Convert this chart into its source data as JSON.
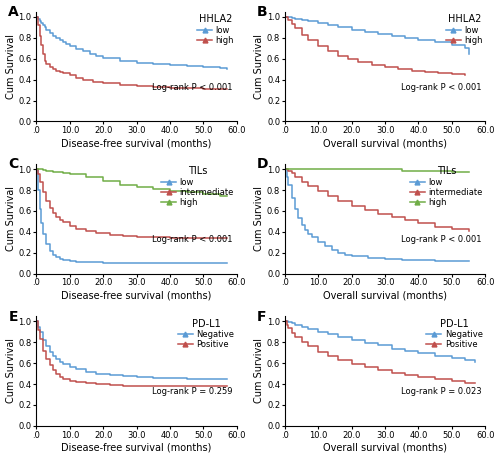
{
  "xlim": [
    0,
    60
  ],
  "ylim": [
    0,
    1.05
  ],
  "xticks": [
    0,
    10,
    20,
    30,
    40,
    50,
    60
  ],
  "yticks": [
    0.0,
    0.2,
    0.4,
    0.6,
    0.8,
    1.0
  ],
  "xticklabels": [
    ".0",
    "10.0",
    "20.0",
    "30.0",
    "40.0",
    "50.0",
    "60.0"
  ],
  "yticklabels": [
    "0.0",
    "0.2",
    "0.4",
    "0.6",
    "0.8",
    "1.0"
  ],
  "colors": {
    "blue": "#5b9bd5",
    "red": "#c0504d",
    "green": "#70ad47"
  },
  "A": {
    "title": "HHLA2",
    "legend": [
      "low",
      "high"
    ],
    "pvalue": "Log-rank P < 0.001",
    "xlabel": "Disease-free survival (months)",
    "ylabel": "Cum Survival",
    "curves": {
      "low": {
        "t": [
          0,
          0.5,
          1,
          1.5,
          2,
          2.5,
          3,
          4,
          5,
          6,
          7,
          8,
          9,
          10,
          12,
          14,
          16,
          18,
          20,
          25,
          30,
          35,
          40,
          45,
          50,
          55,
          57
        ],
        "s": [
          1.0,
          0.98,
          0.96,
          0.94,
          0.92,
          0.9,
          0.88,
          0.85,
          0.82,
          0.8,
          0.78,
          0.76,
          0.74,
          0.72,
          0.69,
          0.67,
          0.65,
          0.63,
          0.61,
          0.58,
          0.56,
          0.55,
          0.54,
          0.53,
          0.52,
          0.51,
          0.5
        ]
      },
      "high": {
        "t": [
          0,
          0.5,
          1,
          1.5,
          2,
          2.5,
          3,
          4,
          5,
          6,
          7,
          8,
          10,
          12,
          14,
          17,
          20,
          25,
          30,
          35,
          40,
          45,
          50,
          55,
          57
        ],
        "s": [
          1.0,
          0.92,
          0.82,
          0.73,
          0.65,
          0.58,
          0.55,
          0.52,
          0.5,
          0.48,
          0.47,
          0.46,
          0.44,
          0.42,
          0.4,
          0.38,
          0.37,
          0.35,
          0.34,
          0.33,
          0.32,
          0.32,
          0.31,
          0.31,
          0.31
        ]
      }
    }
  },
  "B": {
    "title": "HHLA2",
    "legend": [
      "low",
      "high"
    ],
    "pvalue": "Log-rank P < 0.001",
    "xlabel": "Overall survival (months)",
    "ylabel": "Cum Survival",
    "curves": {
      "low": {
        "t": [
          0,
          1,
          2,
          3,
          5,
          7,
          10,
          13,
          16,
          20,
          24,
          28,
          32,
          36,
          40,
          45,
          50,
          54,
          55
        ],
        "s": [
          1.0,
          1.0,
          0.99,
          0.98,
          0.97,
          0.96,
          0.94,
          0.92,
          0.9,
          0.88,
          0.86,
          0.84,
          0.82,
          0.8,
          0.78,
          0.76,
          0.73,
          0.7,
          0.65
        ]
      },
      "high": {
        "t": [
          0,
          1,
          2,
          3,
          5,
          7,
          10,
          13,
          16,
          19,
          22,
          26,
          30,
          34,
          38,
          42,
          46,
          50,
          54
        ],
        "s": [
          1.0,
          0.97,
          0.93,
          0.89,
          0.83,
          0.78,
          0.72,
          0.67,
          0.63,
          0.6,
          0.57,
          0.54,
          0.52,
          0.5,
          0.48,
          0.47,
          0.46,
          0.45,
          0.44
        ]
      }
    }
  },
  "C": {
    "title": "TILs",
    "legend": [
      "low",
      "intermediate",
      "high"
    ],
    "pvalue": "Log-rank P < 0.001",
    "xlabel": "Disease-free survival (months)",
    "ylabel": "Cum Survival",
    "curves": {
      "low": {
        "t": [
          0,
          0.5,
          1,
          1.5,
          2,
          3,
          4,
          5,
          6,
          7,
          8,
          10,
          12,
          15,
          20,
          25,
          30,
          35,
          40,
          45,
          55,
          57
        ],
        "s": [
          1.0,
          0.8,
          0.62,
          0.48,
          0.38,
          0.28,
          0.22,
          0.18,
          0.16,
          0.14,
          0.13,
          0.12,
          0.11,
          0.11,
          0.1,
          0.1,
          0.1,
          0.1,
          0.1,
          0.1,
          0.1,
          0.1
        ]
      },
      "intermediate": {
        "t": [
          0,
          0.5,
          1,
          2,
          3,
          4,
          5,
          6,
          7,
          8,
          10,
          12,
          15,
          18,
          22,
          26,
          30,
          35,
          40,
          45,
          55,
          57
        ],
        "s": [
          1.0,
          0.95,
          0.88,
          0.78,
          0.7,
          0.63,
          0.58,
          0.54,
          0.51,
          0.49,
          0.46,
          0.43,
          0.41,
          0.39,
          0.37,
          0.36,
          0.35,
          0.35,
          0.34,
          0.34,
          0.34,
          0.34
        ]
      },
      "high": {
        "t": [
          0,
          1,
          2,
          3,
          5,
          8,
          10,
          15,
          20,
          25,
          30,
          35,
          40,
          45,
          50,
          55,
          57
        ],
        "s": [
          1.0,
          1.0,
          0.99,
          0.98,
          0.97,
          0.96,
          0.95,
          0.93,
          0.89,
          0.85,
          0.83,
          0.81,
          0.79,
          0.78,
          0.76,
          0.74,
          0.74
        ]
      }
    }
  },
  "D": {
    "title": "TILs",
    "legend": [
      "low",
      "intermediate",
      "high"
    ],
    "pvalue": "Log-rank P < 0.001",
    "xlabel": "Overall survival (months)",
    "ylabel": "Cum Survival",
    "curves": {
      "low": {
        "t": [
          0,
          0.5,
          1,
          2,
          3,
          4,
          5,
          6,
          7,
          8,
          10,
          12,
          14,
          16,
          18,
          20,
          25,
          30,
          35,
          40,
          45,
          55
        ],
        "s": [
          1.0,
          0.93,
          0.85,
          0.72,
          0.62,
          0.53,
          0.47,
          0.42,
          0.38,
          0.35,
          0.3,
          0.26,
          0.23,
          0.2,
          0.18,
          0.17,
          0.15,
          0.14,
          0.13,
          0.13,
          0.12,
          0.12
        ]
      },
      "intermediate": {
        "t": [
          0,
          1,
          2,
          3,
          5,
          7,
          10,
          13,
          16,
          20,
          24,
          28,
          32,
          36,
          40,
          45,
          50,
          55
        ],
        "s": [
          1.0,
          0.98,
          0.96,
          0.93,
          0.88,
          0.84,
          0.79,
          0.74,
          0.7,
          0.65,
          0.61,
          0.57,
          0.54,
          0.51,
          0.48,
          0.45,
          0.43,
          0.41
        ]
      },
      "high": {
        "t": [
          0,
          1,
          3,
          5,
          10,
          15,
          20,
          25,
          30,
          35,
          40,
          45,
          50,
          55
        ],
        "s": [
          1.0,
          1.0,
          1.0,
          1.0,
          1.0,
          1.0,
          1.0,
          1.0,
          1.0,
          0.98,
          0.98,
          0.98,
          0.97,
          0.97
        ]
      }
    }
  },
  "E": {
    "title": "PD-L1",
    "legend": [
      "Negative",
      "Positive"
    ],
    "pvalue": "Log-rank P = 0.259",
    "xlabel": "Disease-free survival (months)",
    "ylabel": "Cum Survival",
    "curves": {
      "negative": {
        "t": [
          0,
          0.5,
          1,
          2,
          3,
          4,
          5,
          6,
          7,
          8,
          10,
          12,
          15,
          18,
          22,
          26,
          30,
          35,
          40,
          45,
          50,
          55,
          57
        ],
        "s": [
          1.0,
          0.95,
          0.9,
          0.82,
          0.76,
          0.71,
          0.67,
          0.64,
          0.61,
          0.59,
          0.56,
          0.54,
          0.52,
          0.5,
          0.49,
          0.48,
          0.47,
          0.46,
          0.46,
          0.45,
          0.45,
          0.45,
          0.45
        ]
      },
      "positive": {
        "t": [
          0,
          0.5,
          1,
          2,
          3,
          4,
          5,
          6,
          7,
          8,
          10,
          12,
          15,
          18,
          22,
          26,
          30,
          35,
          40,
          45,
          50,
          55,
          57
        ],
        "s": [
          1.0,
          0.92,
          0.83,
          0.72,
          0.64,
          0.58,
          0.53,
          0.5,
          0.47,
          0.45,
          0.43,
          0.42,
          0.41,
          0.4,
          0.39,
          0.38,
          0.38,
          0.38,
          0.38,
          0.38,
          0.38,
          0.38,
          0.38
        ]
      }
    }
  },
  "F": {
    "title": "PD-L1",
    "legend": [
      "Negative",
      "Positive"
    ],
    "pvalue": "Log-rank P = 0.023",
    "xlabel": "Overall survival (months)",
    "ylabel": "Cum Survival",
    "curves": {
      "negative": {
        "t": [
          0,
          1,
          2,
          3,
          5,
          7,
          10,
          13,
          16,
          20,
          24,
          28,
          32,
          36,
          40,
          45,
          50,
          54,
          57
        ],
        "s": [
          1.0,
          0.99,
          0.98,
          0.97,
          0.95,
          0.93,
          0.9,
          0.88,
          0.85,
          0.82,
          0.79,
          0.77,
          0.74,
          0.72,
          0.7,
          0.67,
          0.65,
          0.63,
          0.61
        ]
      },
      "positive": {
        "t": [
          0,
          0.5,
          1,
          2,
          3,
          5,
          7,
          10,
          13,
          16,
          20,
          24,
          28,
          32,
          36,
          40,
          45,
          50,
          54,
          57
        ],
        "s": [
          1.0,
          0.97,
          0.94,
          0.89,
          0.85,
          0.8,
          0.76,
          0.71,
          0.67,
          0.63,
          0.59,
          0.56,
          0.53,
          0.51,
          0.49,
          0.47,
          0.45,
          0.43,
          0.41,
          0.41
        ]
      }
    }
  },
  "figure_bg": "#ffffff",
  "tick_fontsize": 6.0,
  "label_fontsize": 7.0,
  "legend_fontsize": 6.0,
  "pvalue_fontsize": 6.0,
  "title_fontsize": 7.0,
  "panel_label_fontsize": 10
}
